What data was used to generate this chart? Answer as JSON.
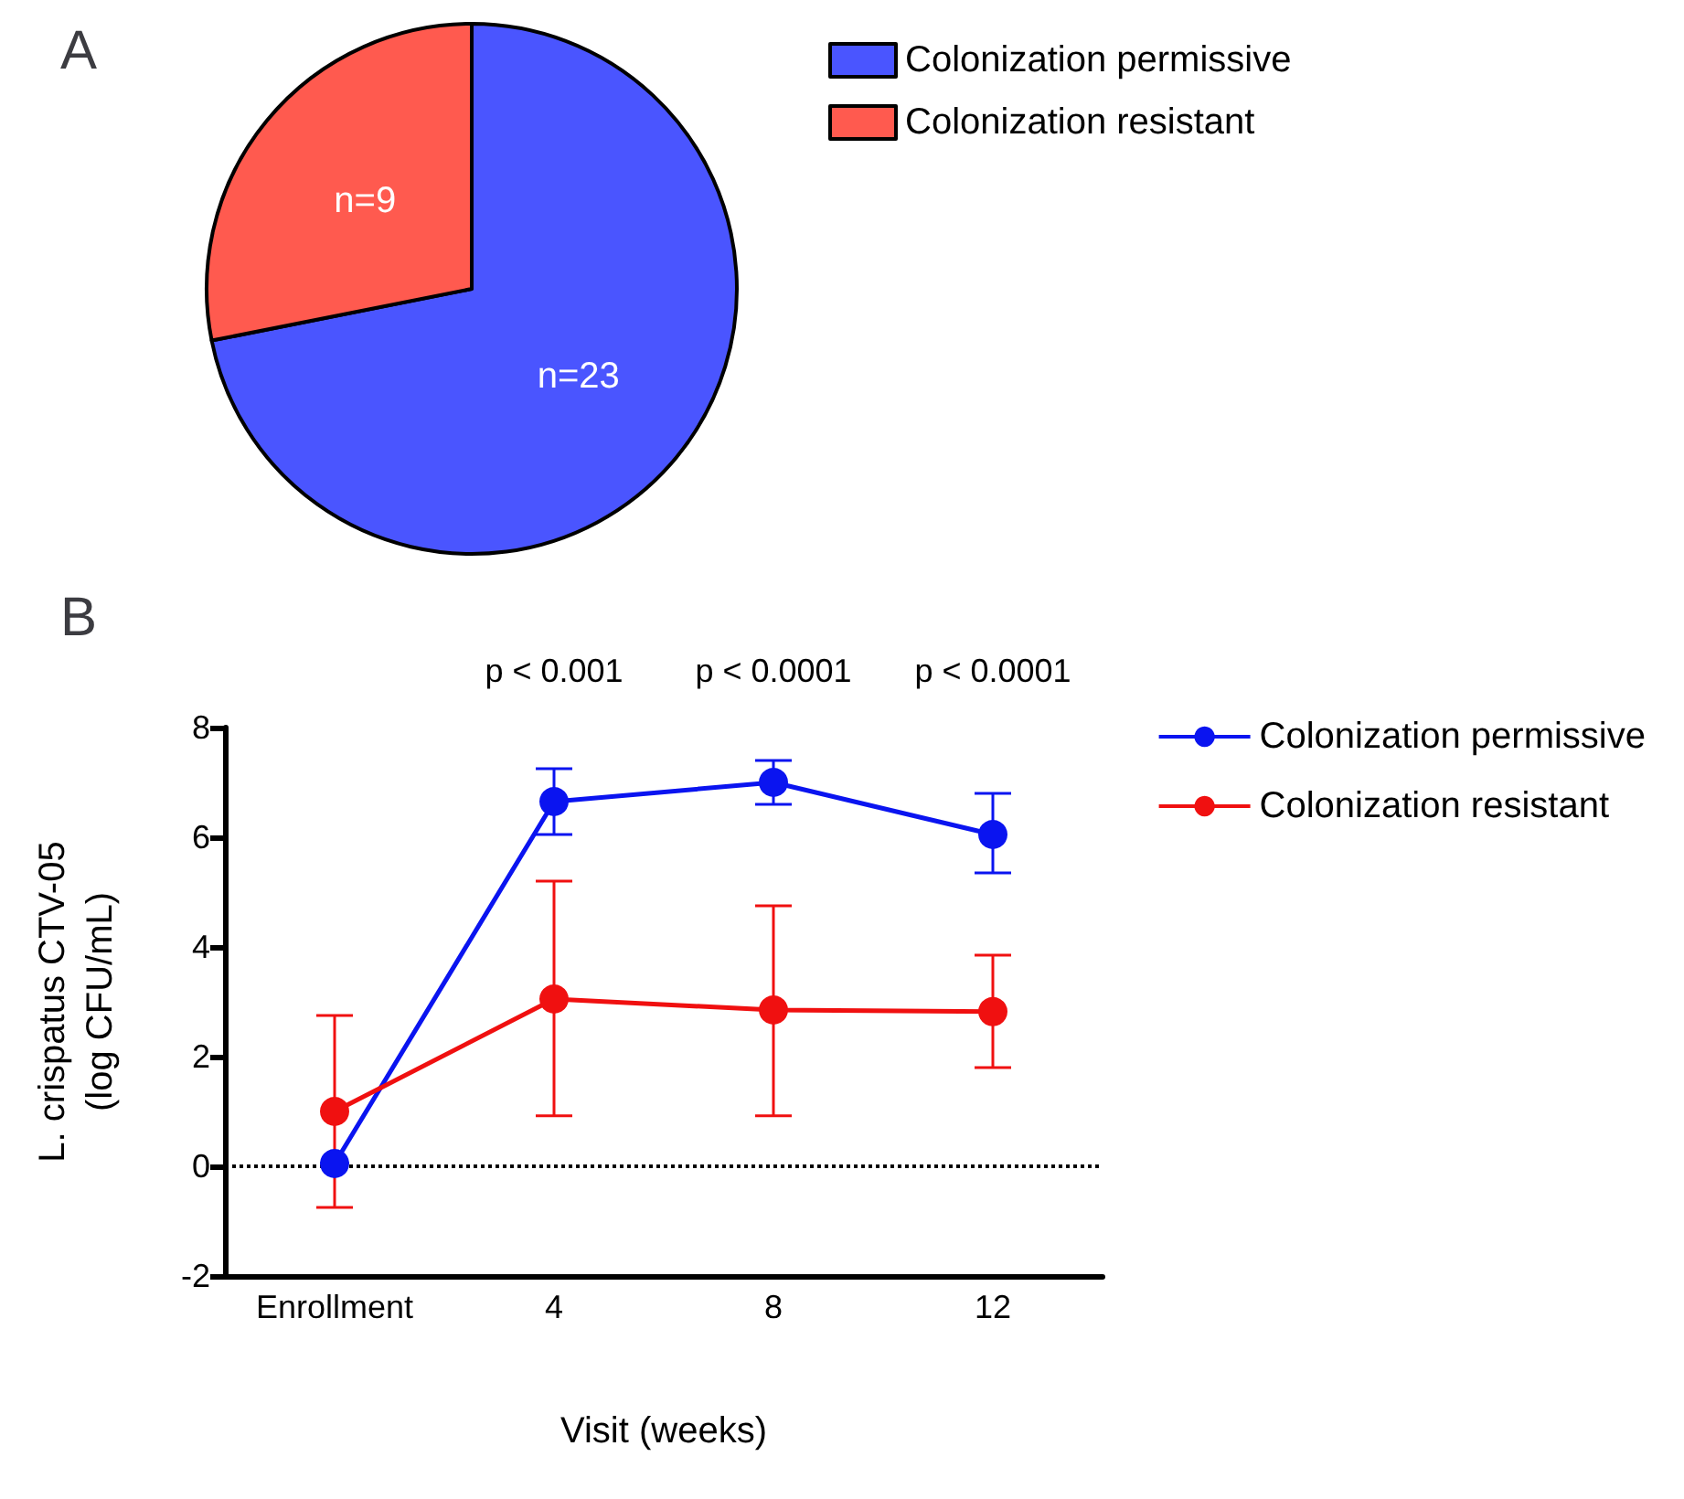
{
  "chart_data": [
    {
      "type": "pie",
      "title": "A",
      "categories": [
        "Colonization permissive",
        "Colonization resistant"
      ],
      "values": [
        23,
        9
      ],
      "colors": [
        "#4a55ff",
        "#ff5a4f"
      ],
      "value_labels": [
        "n=23",
        "n=9"
      ],
      "legend": "top right"
    },
    {
      "type": "line",
      "title": "B",
      "categories": [
        "Enrollment",
        "4",
        "8",
        "12"
      ],
      "xlabel": "Visit (weeks)",
      "ylabel": "L. crispatus CTV-05\n(log CFU/mL)",
      "ylim": [
        -2,
        8
      ],
      "yticks": [
        -2,
        0,
        2,
        4,
        6,
        8
      ],
      "grid": false,
      "legend": "top right",
      "marker": "circle",
      "line_style": "solid",
      "series": [
        {
          "name": "Colonization permissive",
          "color": "#0a14f0",
          "values": [
            0.05,
            6.65,
            7.0,
            6.05
          ],
          "errors": [
            null,
            [
              6.05,
              7.25
            ],
            [
              6.6,
              7.4
            ],
            [
              5.35,
              6.8
            ]
          ]
        },
        {
          "name": "Colonization resistant",
          "color": "#f01010",
          "values": [
            1.0,
            3.05,
            2.85,
            2.82
          ],
          "errors": [
            [
              -0.75,
              2.75
            ],
            [
              0.92,
              5.2
            ],
            [
              0.92,
              4.75
            ],
            [
              1.8,
              3.85
            ]
          ]
        }
      ],
      "ref_lines": [
        {
          "axis": "y",
          "value": 0,
          "line_style": "dotted",
          "color": "#000000"
        }
      ],
      "annotations": [
        "p < 0.001",
        "p < 0.0001",
        "p < 0.0001"
      ]
    }
  ]
}
